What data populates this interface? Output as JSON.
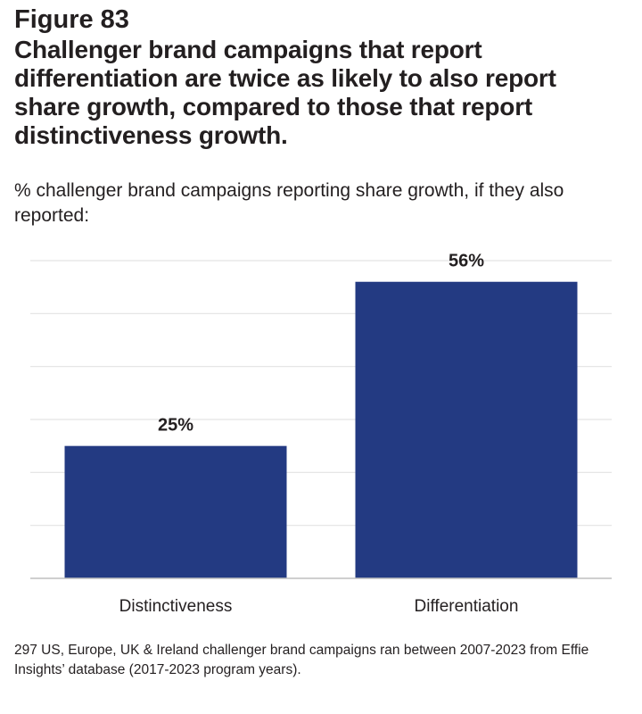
{
  "figure_label": "Figure 83",
  "headline": "Challenger brand campaigns that report differentiation are twice as likely to also report share growth, compared to those that report distinctiveness growth.",
  "subtitle": "% challenger brand campaigns reporting share growth, if they also reported:",
  "footnote": "297 US, Europe, UK & Ireland challenger brand campaigns ran between 2007-2023 from Effie Insights’ database  (2017-2023 program years).",
  "colors": {
    "bar": "#233a82",
    "grid": "#e3e3e3",
    "axis": "#bfbfbf",
    "text": "#231f20"
  },
  "chart_data": {
    "type": "bar",
    "title": "% challenger brand campaigns reporting share growth, if they also reported:",
    "categories": [
      "Distinctiveness",
      "Differentiation"
    ],
    "values": [
      25,
      56
    ],
    "data_labels": [
      "25%",
      "56%"
    ],
    "xlabel": "",
    "ylabel": "",
    "ylim": [
      0,
      60
    ],
    "gridlines": [
      10,
      20,
      30,
      40,
      50,
      60
    ],
    "grid": true,
    "legend": "none"
  }
}
